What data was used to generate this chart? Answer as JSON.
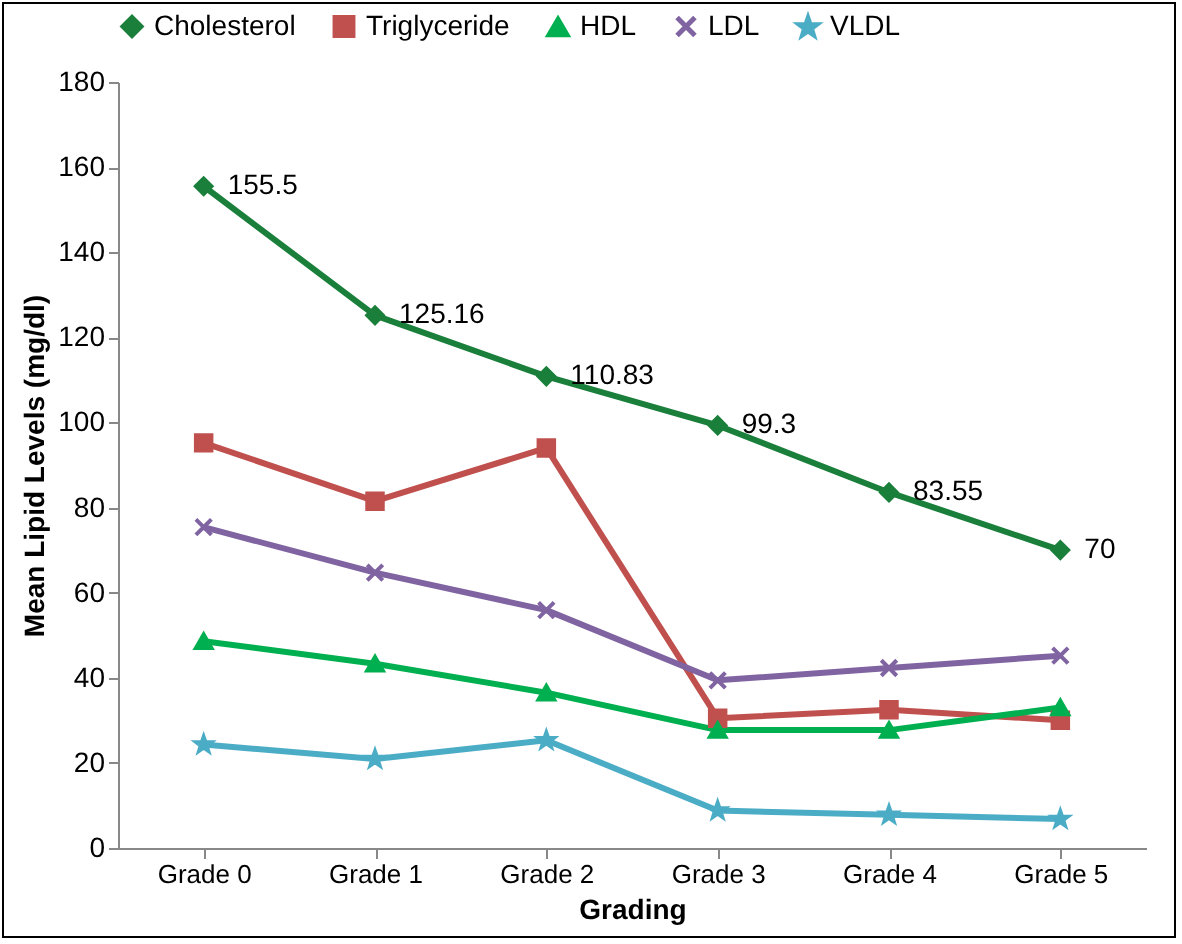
{
  "chart_data": {
    "type": "line",
    "xlabel": "Grading",
    "ylabel": "Mean Lipid Levels (mg/dl)",
    "categories": [
      "Grade 0",
      "Grade 1",
      "Grade 2",
      "Grade 3",
      "Grade 4",
      "Grade 5"
    ],
    "series": [
      {
        "name": "Cholesterol",
        "color": "#1a7f3a",
        "marker": "diamond",
        "values": [
          155.5,
          125.16,
          110.83,
          99.3,
          83.55,
          70
        ],
        "value_labels": [
          "155.5",
          "125.16",
          "110.83",
          "99.3",
          "83.55",
          "70"
        ]
      },
      {
        "name": "Triglyceride",
        "color": "#c0504d",
        "marker": "square",
        "values": [
          95.2,
          81.5,
          94,
          30.5,
          32.5,
          30
        ]
      },
      {
        "name": "HDL",
        "color": "#00b050",
        "marker": "triangle",
        "values": [
          48.6,
          43.3,
          36.5,
          27.7,
          27.7,
          33
        ]
      },
      {
        "name": "LDL",
        "color": "#8064a2",
        "marker": "cross",
        "values": [
          75.4,
          64.7,
          55.9,
          39.4,
          42.3,
          45.2
        ]
      },
      {
        "name": "VLDL",
        "color": "#4bacc6",
        "marker": "star",
        "values": [
          24.3,
          20.9,
          25.3,
          8.8,
          7.8,
          6.8
        ]
      }
    ],
    "ylim": [
      0,
      180
    ],
    "yticks": [
      0,
      20,
      40,
      60,
      80,
      100,
      120,
      140,
      160,
      180
    ],
    "grid": false,
    "legend": "top",
    "line_style": "solid"
  }
}
